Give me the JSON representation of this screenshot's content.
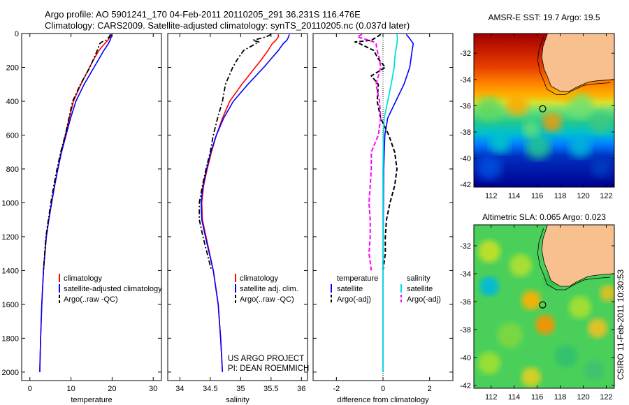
{
  "header": {
    "line1": "Argo profile: AO 5901241_170 04-Feb-2011 20110205_291 36.231S 116.476E",
    "line2": "Climatology: CARS2009. Satellite-adjusted climatology: synTS_20110205.nc (0.037d later)"
  },
  "credits": {
    "project": "US ARGO PROJECT",
    "pi": "PI: DEAN ROEMMICH",
    "side": "CSIRO 11-Feb-2011 10:30:53"
  },
  "colors": {
    "climatology": "#ff0000",
    "satellite": "#0000ff",
    "argo": "#000000",
    "salinity_satellite": "#00e0e0",
    "salinity_argo": "#ff00ff",
    "land": "#f9c08f"
  },
  "chart_data": [
    {
      "type": "line",
      "id": "temperature",
      "xlabel": "temperature",
      "ylabel": "",
      "xlim": [
        -2,
        32
      ],
      "ylim": [
        2050,
        0
      ],
      "xticks": [
        0,
        10,
        20,
        30
      ],
      "yticks": [
        0,
        200,
        400,
        600,
        800,
        1000,
        1200,
        1400,
        1600,
        1800,
        2000
      ],
      "legend": [
        "climatology",
        "satellite-adjusted climatology",
        "Argo(..raw -QC)"
      ],
      "series": [
        {
          "name": "climatology",
          "depth": [
            5,
            20,
            40,
            60,
            100,
            150,
            200,
            300,
            400,
            500,
            600,
            700,
            800,
            900,
            1000,
            1100,
            1200,
            1400,
            1600,
            1800,
            2000
          ],
          "values": [
            19.7,
            19.5,
            19.0,
            18.2,
            16.8,
            15.6,
            14.5,
            12.4,
            10.6,
            9.6,
            8.6,
            7.6,
            6.8,
            6.0,
            5.3,
            4.6,
            4.0,
            3.3,
            2.9,
            2.6,
            2.4
          ]
        },
        {
          "name": "satellite-adjusted climatology",
          "depth": [
            5,
            20,
            40,
            60,
            100,
            150,
            200,
            300,
            400,
            500,
            600,
            700,
            800,
            900,
            1000,
            1100,
            1200,
            1400,
            1600,
            1800,
            2000
          ],
          "values": [
            19.9,
            19.8,
            19.5,
            19.1,
            18.0,
            16.8,
            15.6,
            13.2,
            11.2,
            9.9,
            8.8,
            7.7,
            6.8,
            6.0,
            5.3,
            4.6,
            4.0,
            3.3,
            2.9,
            2.6,
            2.4
          ]
        },
        {
          "name": "Argo(..raw -QC)",
          "depth": [
            5,
            20,
            40,
            50,
            60,
            100,
            150,
            200,
            300,
            400,
            500,
            600,
            700,
            800,
            900,
            1000,
            1100,
            1200,
            1300,
            1400
          ],
          "values": [
            19.6,
            19.3,
            18.5,
            17.5,
            17.0,
            16.4,
            15.5,
            14.6,
            12.3,
            10.4,
            9.5,
            8.6,
            7.5,
            6.6,
            5.8,
            5.1,
            4.5,
            3.9,
            3.6,
            3.3
          ]
        }
      ]
    },
    {
      "type": "line",
      "id": "salinity",
      "xlabel": "salinity",
      "ylabel": "",
      "xlim": [
        33.8,
        36.1
      ],
      "ylim": [
        2050,
        0
      ],
      "xticks": [
        34,
        34.5,
        35,
        35.5,
        36
      ],
      "legend": [
        "climatology",
        "satellite adj. clim.",
        "Argo(..raw -QC)"
      ],
      "series": [
        {
          "name": "climatology",
          "depth": [
            5,
            20,
            40,
            60,
            100,
            150,
            200,
            300,
            400,
            500,
            600,
            700,
            800,
            900,
            1000,
            1100,
            1200,
            1400,
            1600,
            1800,
            2000
          ],
          "values": [
            35.62,
            35.62,
            35.58,
            35.52,
            35.45,
            35.35,
            35.24,
            35.02,
            34.82,
            34.7,
            34.6,
            34.52,
            34.45,
            34.39,
            34.36,
            34.37,
            34.43,
            34.55,
            34.63,
            34.67,
            34.7
          ]
        },
        {
          "name": "satellite adj. clim.",
          "depth": [
            5,
            20,
            40,
            60,
            100,
            150,
            200,
            300,
            400,
            500,
            600,
            700,
            800,
            900,
            1000,
            1100,
            1200,
            1400,
            1600,
            1800,
            2000
          ],
          "values": [
            35.8,
            35.79,
            35.76,
            35.7,
            35.62,
            35.5,
            35.38,
            35.12,
            34.88,
            34.72,
            34.6,
            34.51,
            34.44,
            34.38,
            34.35,
            34.36,
            34.42,
            34.55,
            34.63,
            34.67,
            34.7
          ]
        },
        {
          "name": "Argo(..raw -QC)",
          "depth": [
            5,
            20,
            40,
            50,
            60,
            100,
            150,
            200,
            300,
            400,
            500,
            600,
            700,
            800,
            900,
            1000,
            1100,
            1200,
            1300,
            1400
          ],
          "values": [
            35.5,
            35.42,
            35.2,
            35.3,
            35.25,
            35.05,
            34.95,
            34.87,
            34.75,
            34.7,
            34.62,
            34.55,
            34.5,
            34.43,
            34.37,
            34.32,
            34.32,
            34.38,
            34.45,
            34.52
          ]
        }
      ]
    },
    {
      "type": "line",
      "id": "difference",
      "xlabel": "difference from climatology",
      "ylabel": "",
      "xlim": [
        -3,
        3
      ],
      "ylim": [
        2050,
        0
      ],
      "xticks": [
        -2,
        0,
        2
      ],
      "legend_temperature": [
        "temperature",
        "satellite",
        "Argo(-adj)"
      ],
      "legend_salinity": [
        "salinity",
        "satellite",
        "Argo(-adj)"
      ],
      "series": [
        {
          "name": "temperature satellite",
          "depth": [
            5,
            30,
            60,
            100,
            150,
            200,
            300,
            400,
            500,
            600,
            800,
            1000,
            1400,
            2000
          ],
          "values": [
            1.0,
            1.15,
            1.3,
            1.25,
            1.2,
            1.15,
            0.9,
            0.55,
            0.2,
            0.08,
            0.03,
            0.02,
            0.0,
            0.0
          ]
        },
        {
          "name": "temperature Argo(-adj)",
          "depth": [
            5,
            20,
            40,
            50,
            60,
            100,
            150,
            200,
            250,
            300,
            400,
            500,
            600,
            700,
            800,
            900,
            1000,
            1100,
            1200,
            1300,
            1400
          ],
          "values": [
            -0.1,
            -0.25,
            -0.5,
            -1.2,
            -1.0,
            -0.4,
            -0.2,
            0.1,
            -0.5,
            -0.2,
            -0.25,
            -0.1,
            0.25,
            0.5,
            0.6,
            0.5,
            0.3,
            0.15,
            0.1,
            0.1,
            0.0
          ]
        },
        {
          "name": "salinity satellite",
          "depth": [
            5,
            30,
            60,
            100,
            150,
            200,
            300,
            400,
            500,
            600,
            800,
            1000,
            1400,
            2000
          ],
          "values": [
            0.6,
            0.62,
            0.6,
            0.55,
            0.5,
            0.48,
            0.35,
            0.2,
            0.05,
            0.02,
            0.0,
            0.0,
            0.0,
            0.0
          ]
        },
        {
          "name": "salinity Argo(-adj)",
          "depth": [
            5,
            20,
            40,
            50,
            60,
            100,
            150,
            200,
            300,
            400,
            500,
            600,
            700,
            800,
            900,
            1000,
            1100,
            1200,
            1300,
            1400
          ],
          "values": [
            -0.9,
            -1.1,
            -0.6,
            -0.4,
            -0.3,
            -0.25,
            -0.15,
            -0.1,
            -0.3,
            -0.15,
            -0.1,
            -0.2,
            -0.5,
            -0.5,
            -0.55,
            -0.6,
            -0.55,
            -0.55,
            -0.6,
            -0.5
          ]
        }
      ]
    },
    {
      "type": "heatmap",
      "id": "sst_map",
      "title": "AMSR-E SST: 19.7 Argo: 19.5",
      "xlim": [
        110.5,
        122.7
      ],
      "ylim": [
        -42.2,
        -30.5
      ],
      "xticks": [
        112,
        114,
        116,
        118,
        120,
        122
      ],
      "yticks": [
        -32,
        -34,
        -36,
        -38,
        -40,
        -42
      ],
      "marker": {
        "lon": 116.476,
        "lat": -36.231
      }
    },
    {
      "type": "heatmap",
      "id": "sla_map",
      "title": "Altimetric SLA: 0.065 Argo: 0.023",
      "xlim": [
        110.5,
        122.7
      ],
      "ylim": [
        -42.2,
        -30.5
      ],
      "xticks": [
        112,
        114,
        116,
        118,
        120,
        122
      ],
      "yticks": [
        -32,
        -34,
        -36,
        -38,
        -40,
        -42
      ],
      "marker": {
        "lon": 116.476,
        "lat": -36.231
      }
    }
  ]
}
